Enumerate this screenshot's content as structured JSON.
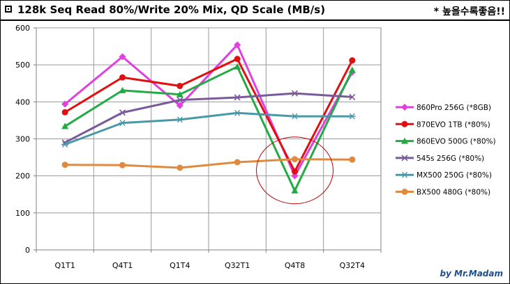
{
  "header": {
    "title": "128k Seq Read 80%/Write 20% Mix, QD Scale (MB/s)",
    "note": "* 높을수록좋음!!",
    "title_icon": "checkbox-square-icon"
  },
  "footer": {
    "credit": "by Mr.Madam"
  },
  "chart_data": {
    "type": "line",
    "title": "128k Seq Read 80%/Write 20% Mix, QD Scale (MB/s)",
    "categories": [
      "Q1T1",
      "Q4T1",
      "Q1T4",
      "Q32T1",
      "Q4T8",
      "Q32T4"
    ],
    "ylim": [
      0,
      600
    ],
    "yticks": [
      0,
      100,
      200,
      300,
      400,
      500,
      600
    ],
    "grid": true,
    "legend_position": "right",
    "annotation": "red-circle-around-Q4T8",
    "series": [
      {
        "name": "860Pro 256G (*8GB)",
        "color": "#e040e0",
        "marker": "diamond",
        "values": [
          394,
          522,
          390,
          554,
          200,
          480
        ]
      },
      {
        "name": "870EVO 1TB (*80%)",
        "color": "#e01010",
        "marker": "circle",
        "values": [
          372,
          466,
          443,
          516,
          212,
          512
        ]
      },
      {
        "name": "860EVO 500G (*80%)",
        "color": "#22aa44",
        "marker": "triangle",
        "values": [
          334,
          431,
          420,
          495,
          160,
          486
        ]
      },
      {
        "name": "545s 256G (*80%)",
        "color": "#7a5a9a",
        "marker": "x",
        "values": [
          290,
          371,
          405,
          412,
          423,
          413
        ]
      },
      {
        "name": "MX500 250G (*80%)",
        "color": "#4898a8",
        "marker": "star",
        "values": [
          285,
          343,
          352,
          370,
          361,
          361
        ]
      },
      {
        "name": "BX500 480G (*80%)",
        "color": "#e08a40",
        "marker": "circle",
        "values": [
          230,
          229,
          222,
          237,
          245,
          244
        ]
      }
    ]
  }
}
